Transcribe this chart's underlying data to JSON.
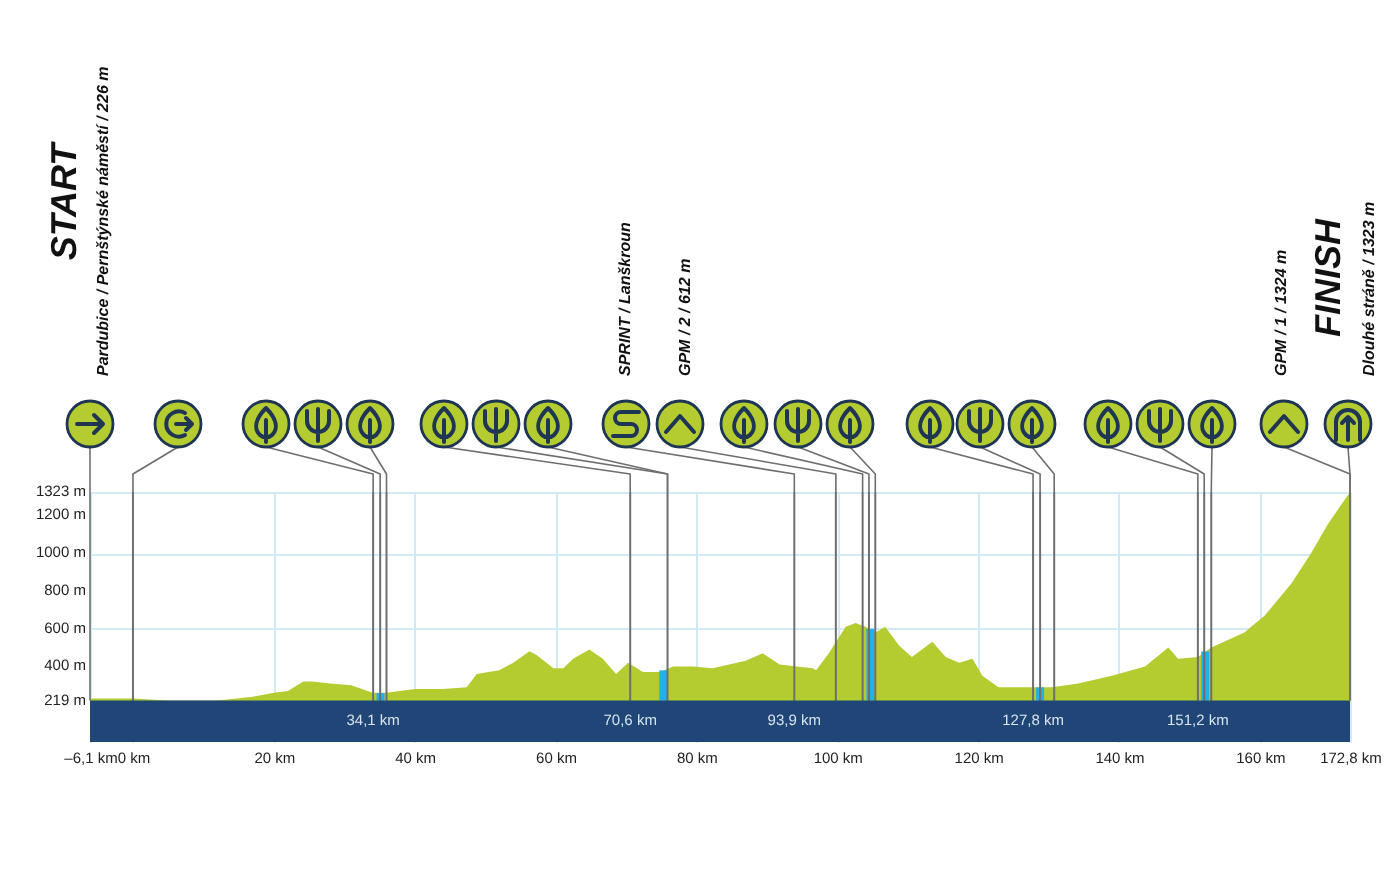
{
  "chart_data": {
    "type": "area",
    "series": [
      {
        "color": "#b5cc31",
        "x": [
          -6.1,
          -4.5,
          -2.5,
          -1,
          0,
          5,
          12,
          17,
          20,
          22,
          24.2,
          25.5,
          28,
          31,
          32.5,
          34,
          36,
          40,
          44,
          47.4,
          48.8,
          52,
          54,
          56.3,
          57.3,
          59.7,
          61.1,
          62.5,
          64.8,
          66.7,
          68.6,
          70.3,
          72.4,
          74.8,
          76.7,
          79.5,
          82.3,
          87,
          89.4,
          91.8,
          96.5,
          97,
          98.8,
          101.2,
          102.6,
          104,
          105.4,
          106.8,
          108.8,
          110.6,
          113.5,
          115.4,
          117.3,
          119.2,
          120.6,
          122.9,
          125.8,
          130.5,
          134.2,
          139,
          143.7,
          147,
          148.4,
          151.2,
          153.1,
          157.8,
          160.7,
          164.5,
          167.3,
          169.6,
          172.8
        ],
        "values": [
          230,
          230,
          230,
          230,
          230,
          220,
          220,
          240,
          260,
          270,
          320,
          320,
          310,
          300,
          280,
          260,
          260,
          280,
          280,
          290,
          360,
          380,
          420,
          480,
          460,
          390,
          390,
          440,
          490,
          440,
          360,
          420,
          370,
          370,
          400,
          400,
          390,
          430,
          470,
          410,
          390,
          380,
          470,
          610,
          630,
          610,
          580,
          610,
          510,
          450,
          530,
          450,
          420,
          440,
          350,
          290,
          290,
          290,
          310,
          350,
          400,
          500,
          440,
          450,
          500,
          580,
          670,
          840,
          1000,
          1150,
          1323
        ]
      },
      {
        "type": "bar",
        "color": "#22b0e6",
        "x": [
          35.15,
          75.3,
          104.7,
          128.8,
          152.25
        ],
        "values": [
          40,
          160,
          380,
          70,
          260
        ],
        "base": [
          219,
          219,
          219,
          219,
          219
        ]
      }
    ],
    "xlim": [
      -6.1,
      172.8
    ],
    "ylim": [
      0,
      1323
    ],
    "xticks": [
      {
        "value": -6.1,
        "label": "–6,1 km"
      },
      {
        "value": 0,
        "label": "0 km"
      },
      {
        "value": 20,
        "label": "20 km"
      },
      {
        "value": 40,
        "label": "40 km"
      },
      {
        "value": 60,
        "label": "60 km"
      },
      {
        "value": 80,
        "label": "80 km"
      },
      {
        "value": 100,
        "label": "100 km"
      },
      {
        "value": 120,
        "label": "120 km"
      },
      {
        "value": 140,
        "label": "140 km"
      },
      {
        "value": 160,
        "label": "160 km"
      },
      {
        "value": 172.8,
        "label": "172,8 km"
      }
    ],
    "yticks": [
      {
        "value": 219,
        "label": "219 m"
      },
      {
        "value": 400,
        "label": "400 m"
      },
      {
        "value": 600,
        "label": "600 m"
      },
      {
        "value": 800,
        "label": "800 m"
      },
      {
        "value": 1000,
        "label": "1000 m"
      },
      {
        "value": 1200,
        "label": "1200 m"
      },
      {
        "value": 1323,
        "label": "1323 m"
      }
    ],
    "grid": true,
    "bands": [
      {
        "axis": "y",
        "from": 0,
        "to": 219,
        "color": "#1f4676"
      }
    ],
    "ref_lines": [
      {
        "axis": "x",
        "value": 0,
        "color": "#6e6e6e"
      },
      {
        "axis": "x",
        "value": 34.1,
        "label": "34,1 km",
        "color": "#6e6e6e"
      },
      {
        "axis": "x",
        "value": 35.1,
        "color": "#6e6e6e"
      },
      {
        "axis": "x",
        "value": 36.0,
        "color": "#6e6e6e"
      },
      {
        "axis": "x",
        "value": 70.6,
        "label": "70,6 km",
        "color": "#6e6e6e"
      },
      {
        "axis": "x",
        "value": 75.9,
        "color": "#6e6e6e"
      },
      {
        "axis": "x",
        "value": 93.9,
        "label": "93,9 km",
        "color": "#6e6e6e"
      },
      {
        "axis": "x",
        "value": 99.8,
        "color": "#6e6e6e"
      },
      {
        "axis": "x",
        "value": 103.6,
        "color": "#6e6e6e"
      },
      {
        "axis": "x",
        "value": 104.5,
        "color": "#6e6e6e"
      },
      {
        "axis": "x",
        "value": 105.4,
        "color": "#6e6e6e"
      },
      {
        "axis": "x",
        "value": 127.8,
        "label": "127,8 km",
        "color": "#6e6e6e"
      },
      {
        "axis": "x",
        "value": 128.8,
        "color": "#6e6e6e"
      },
      {
        "axis": "x",
        "value": 130.8,
        "color": "#6e6e6e"
      },
      {
        "axis": "x",
        "value": 151.2,
        "label": "151,2 km",
        "color": "#6e6e6e"
      },
      {
        "axis": "x",
        "value": 152.1,
        "color": "#6e6e6e"
      },
      {
        "axis": "x",
        "value": 153.1,
        "color": "#6e6e6e"
      }
    ],
    "annotations": [
      "START",
      "Pardubice / Pernštýnské náměstí / 226 m",
      "SPRINT / Lanškroun",
      "GPM / 2 / 612 m",
      "GPM / 1 / 1324 m",
      "FINISH",
      "Dlouhé stráně / 1323 m"
    ]
  }
}
